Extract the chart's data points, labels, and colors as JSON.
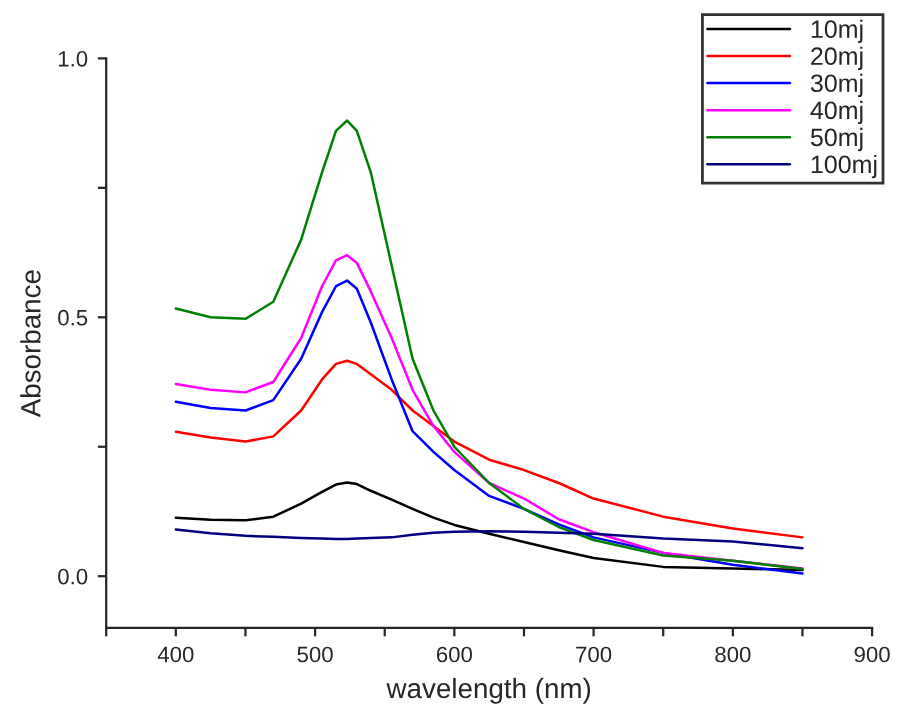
{
  "chart_data": {
    "type": "line",
    "xlabel": "wavelength (nm)",
    "ylabel": "Absorbance",
    "x": [
      400,
      425,
      450,
      470,
      490,
      505,
      515,
      523,
      530,
      540,
      555,
      570,
      585,
      600,
      625,
      650,
      675,
      700,
      750,
      800,
      850
    ],
    "series": [
      {
        "name": "10mj",
        "color": "#000000",
        "values": [
          0.113,
          0.109,
          0.108,
          0.115,
          0.14,
          0.163,
          0.177,
          0.181,
          0.178,
          0.165,
          0.148,
          0.13,
          0.113,
          0.099,
          0.082,
          0.066,
          0.05,
          0.035,
          0.018,
          0.015,
          0.012
        ]
      },
      {
        "name": "20mj",
        "color": "#ff0000",
        "values": [
          0.279,
          0.268,
          0.26,
          0.27,
          0.32,
          0.38,
          0.41,
          0.416,
          0.41,
          0.39,
          0.36,
          0.32,
          0.29,
          0.26,
          0.225,
          0.205,
          0.18,
          0.15,
          0.115,
          0.092,
          0.075
        ]
      },
      {
        "name": "30mj",
        "color": "#0000ff",
        "values": [
          0.337,
          0.325,
          0.32,
          0.34,
          0.42,
          0.51,
          0.56,
          0.571,
          0.555,
          0.49,
          0.38,
          0.28,
          0.24,
          0.205,
          0.155,
          0.13,
          0.1,
          0.075,
          0.045,
          0.022,
          0.005
        ]
      },
      {
        "name": "40mj",
        "color": "#ff00ff",
        "values": [
          0.371,
          0.36,
          0.355,
          0.375,
          0.46,
          0.56,
          0.61,
          0.62,
          0.605,
          0.55,
          0.46,
          0.36,
          0.29,
          0.24,
          0.18,
          0.15,
          0.11,
          0.085,
          0.045,
          0.03,
          0.015
        ]
      },
      {
        "name": "50mj",
        "color": "#008000",
        "values": [
          0.517,
          0.5,
          0.497,
          0.53,
          0.65,
          0.78,
          0.86,
          0.88,
          0.86,
          0.78,
          0.6,
          0.42,
          0.32,
          0.25,
          0.18,
          0.13,
          0.095,
          0.07,
          0.04,
          0.03,
          0.014
        ]
      },
      {
        "name": "100mj",
        "color": "#000080",
        "values": [
          0.09,
          0.083,
          0.078,
          0.076,
          0.074,
          0.073,
          0.072,
          0.072,
          0.073,
          0.074,
          0.075,
          0.08,
          0.084,
          0.086,
          0.087,
          0.086,
          0.084,
          0.082,
          0.073,
          0.067,
          0.054
        ]
      }
    ],
    "xlim": [
      350,
      900
    ],
    "xticks": [
      {
        "value": 350,
        "label": null
      },
      400,
      {
        "value": 450,
        "label": null
      },
      500,
      {
        "value": 550,
        "label": null
      },
      600,
      {
        "value": 650,
        "label": null
      },
      700,
      {
        "value": 750,
        "label": null
      },
      800,
      {
        "value": 850,
        "label": null
      },
      900
    ],
    "ylim": [
      -0.1,
      1.0
    ],
    "yticks": [
      {
        "value": 0,
        "label": "0.0"
      },
      {
        "value": 0.25,
        "label": null
      },
      {
        "value": 0.5,
        "label": "0.5"
      },
      {
        "value": 0.75,
        "label": null
      },
      {
        "value": 1.0,
        "label": "1.0"
      }
    ],
    "legend": "top right",
    "grid": false,
    "marker": "none",
    "line_style": "solid"
  }
}
